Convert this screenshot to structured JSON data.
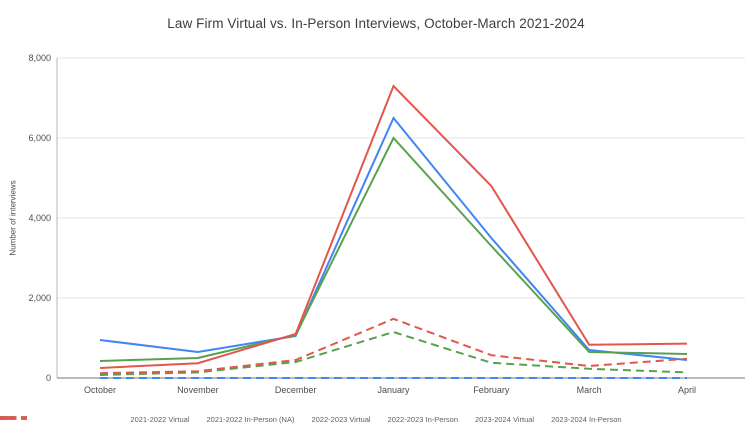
{
  "title": "Law Firm Virtual vs. In-Person Interviews, October-March 2021-2024",
  "chart_data": {
    "type": "line",
    "title": "Law Firm Virtual vs. In-Person Interviews, October-March 2021-2024",
    "xlabel": "",
    "ylabel": "Number of interviews",
    "categories": [
      "October",
      "November",
      "December",
      "January",
      "February",
      "March",
      "April"
    ],
    "series": [
      {
        "name": "2021-2022 Virtual",
        "color": "#4285F4",
        "style": "solid",
        "values": [
          950,
          650,
          1050,
          6500,
          3500,
          700,
          450
        ]
      },
      {
        "name": "2021-2022 In-Person (NA)",
        "color": "#4285F4",
        "style": "dashed",
        "values": [
          0,
          0,
          0,
          0,
          0,
          0,
          0
        ]
      },
      {
        "name": "2022-2023 Virtual",
        "color": "#58A14E",
        "style": "solid",
        "values": [
          425,
          500,
          1075,
          6000,
          3300,
          650,
          600
        ]
      },
      {
        "name": "2022-2023 In-Person",
        "color": "#58A14E",
        "style": "dashed",
        "values": [
          75,
          140,
          400,
          1150,
          380,
          230,
          140
        ]
      },
      {
        "name": "2023-2024 Virtual",
        "color": "#E2574C",
        "style": "solid",
        "values": [
          250,
          370,
          1100,
          7300,
          4800,
          830,
          860
        ]
      },
      {
        "name": "2023-2024 In-Person",
        "color": "#E2574C",
        "style": "dashed",
        "values": [
          120,
          170,
          450,
          1480,
          570,
          300,
          480
        ]
      }
    ],
    "ylim": [
      0,
      8000
    ],
    "yticks": [
      0,
      2000,
      4000,
      6000,
      8000
    ],
    "ytick_labels": [
      "0",
      "2,000",
      "4,000",
      "6,000",
      "8,000"
    ],
    "grid": true,
    "legend_position": "bottom"
  },
  "colors": {
    "axis_baseline": "#757575",
    "axis_line": "#b7b7b7",
    "gridline": "#e6e6e6",
    "title_text": "#3d3d3d",
    "label_text": "#4d4d4d",
    "legend_text": "#5f5f5f"
  }
}
